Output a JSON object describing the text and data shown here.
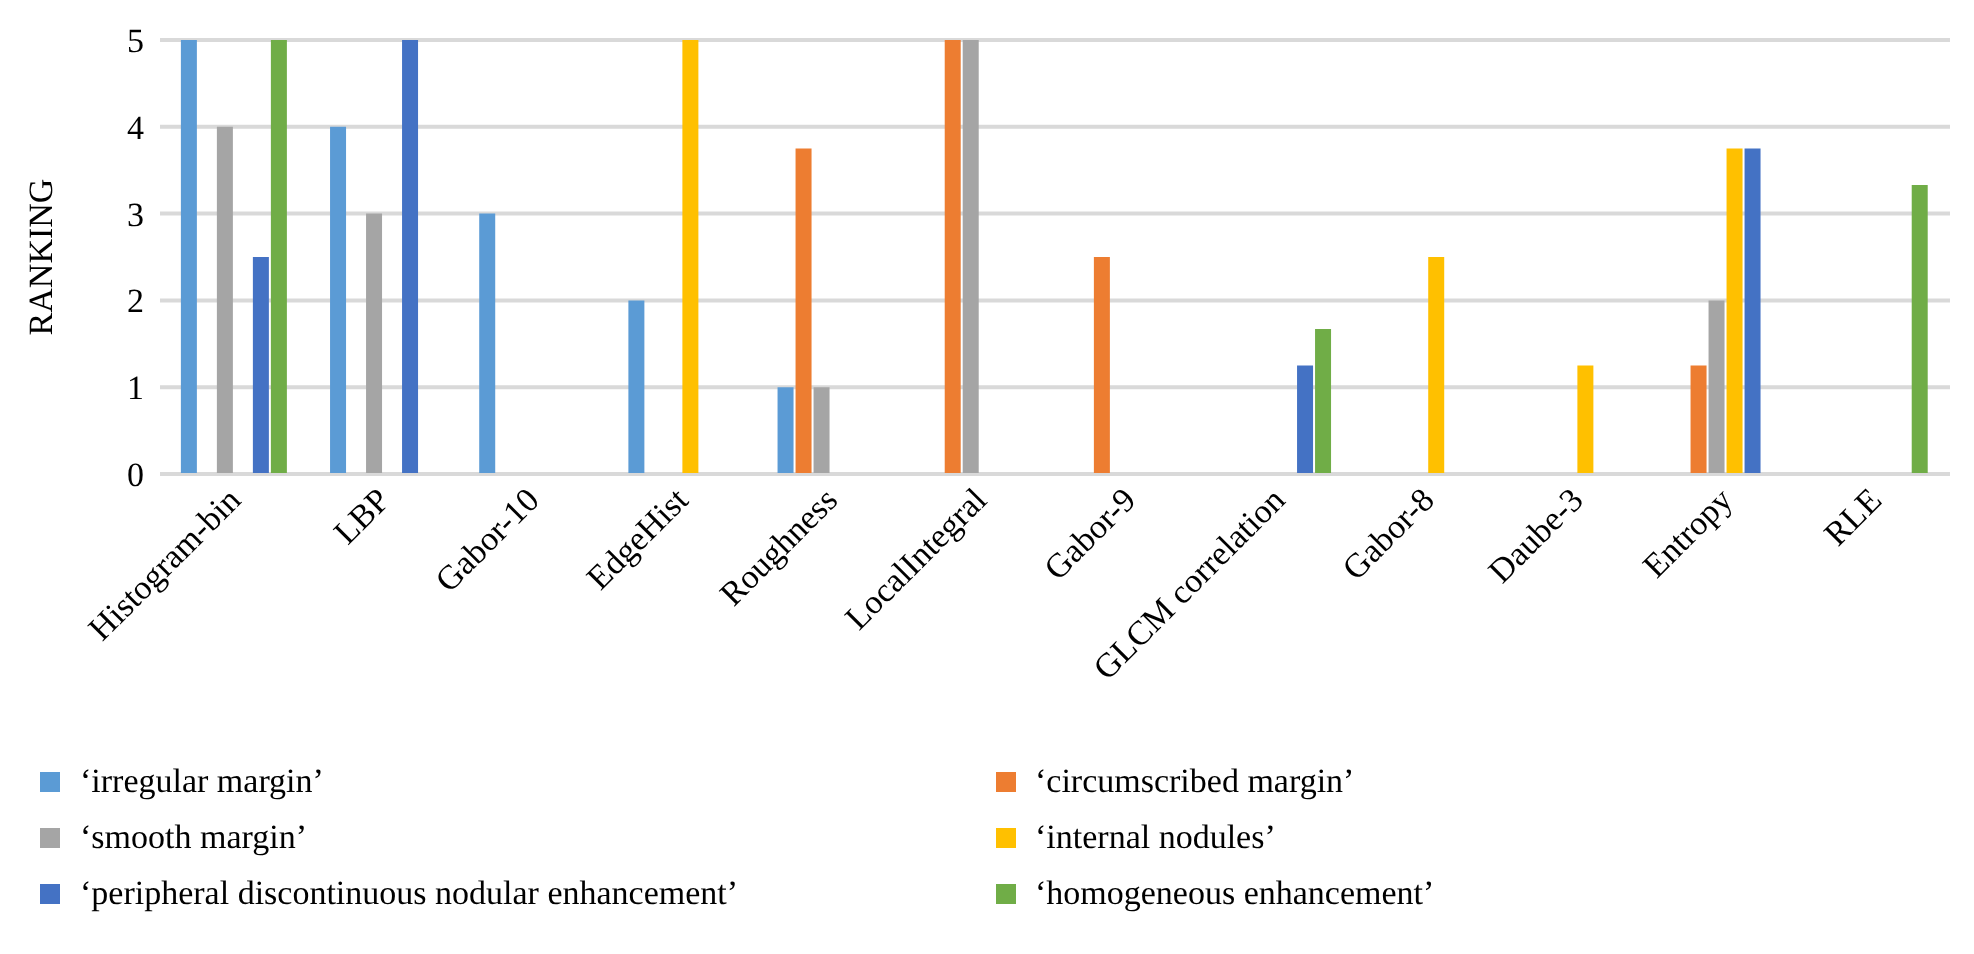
{
  "chart_data": {
    "type": "bar",
    "ylabel": "RANKING",
    "categories": [
      "Histogram-bin",
      "LBP",
      "Gabor-10",
      "EdgeHist",
      "Roughness",
      "LocalIntegral",
      "Gabor-9",
      "GLCM correlation",
      "Gabor-8",
      "Daube-3",
      "Entropy",
      "RLE"
    ],
    "series": [
      {
        "name": "‘irregular margin’",
        "color": "#5b9bd5",
        "values": [
          5,
          4,
          3,
          2,
          1,
          0,
          0,
          0,
          0,
          0,
          0,
          0
        ]
      },
      {
        "name": "‘circumscribed margin’",
        "color": "#ed7d31",
        "values": [
          0,
          0,
          0,
          0,
          3.75,
          5,
          2.5,
          0,
          0,
          0,
          1.25,
          0
        ]
      },
      {
        "name": "‘smooth margin’",
        "color": "#a5a5a5",
        "values": [
          4,
          3,
          0,
          0,
          1,
          5,
          0,
          0,
          0,
          0,
          2,
          0
        ]
      },
      {
        "name": "‘internal nodules’",
        "color": "#ffc000",
        "values": [
          0,
          0,
          0,
          5,
          0,
          0,
          0,
          0,
          2.5,
          1.25,
          3.75,
          0
        ]
      },
      {
        "name": "‘peripheral discontinuous nodular enhancement’",
        "color": "#4472c4",
        "values": [
          2.5,
          5,
          0,
          0,
          0,
          0,
          0,
          1.25,
          0,
          0,
          3.75,
          0
        ]
      },
      {
        "name": "‘homogeneous enhancement’",
        "color": "#70ad47",
        "values": [
          5,
          0,
          0,
          0,
          0,
          0,
          0,
          1.67,
          0,
          0,
          0,
          3.33
        ]
      }
    ],
    "ylim": [
      0,
      5
    ],
    "yticks": [
      0,
      1,
      2,
      3,
      4,
      5
    ],
    "grid": "y",
    "legend": "bottom"
  }
}
